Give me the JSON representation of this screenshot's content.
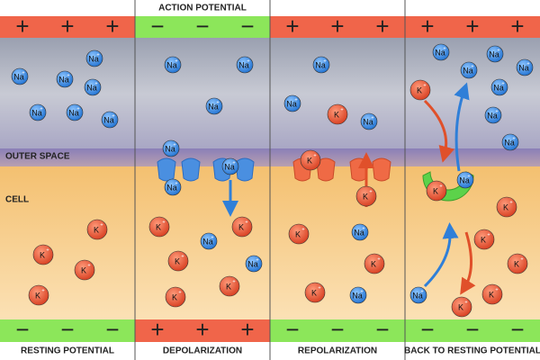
{
  "header": {
    "title": "ACTION POTENTIAL"
  },
  "regions": {
    "outside": "OUTER SPACE",
    "inside": "CELL"
  },
  "panels": [
    {
      "label": "RESTING POTENTIAL"
    },
    {
      "label": "DEPOLARIZATION"
    },
    {
      "label": "REPOLARIZATION"
    },
    {
      "label": "BACK TO RESTING POTENTIAL"
    }
  ],
  "ions": {
    "sodium": "Na",
    "potassium": "K",
    "charge": "+"
  },
  "signs": {
    "plus": "+",
    "minus": "−"
  }
}
